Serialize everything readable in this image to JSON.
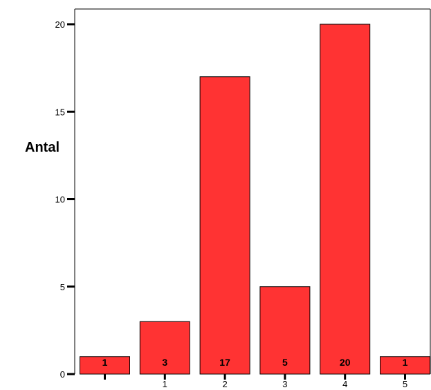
{
  "chart_data": {
    "type": "bar",
    "categories": [
      "",
      "1",
      "2",
      "3",
      "4",
      "5"
    ],
    "values": [
      1,
      3,
      17,
      5,
      20,
      1
    ],
    "data_labels": [
      "1",
      "3",
      "17",
      "5",
      "20",
      "1"
    ],
    "title": "",
    "xlabel": "",
    "ylabel": "Antal",
    "ylim": [
      0,
      21.7
    ],
    "yticks": [
      0,
      5,
      10,
      15,
      20
    ],
    "ytick_labels": [
      "0",
      "5",
      "10",
      "15",
      "20"
    ],
    "grid": false,
    "bar_color": "#ff3333",
    "bar_edge_color": "#000000"
  }
}
